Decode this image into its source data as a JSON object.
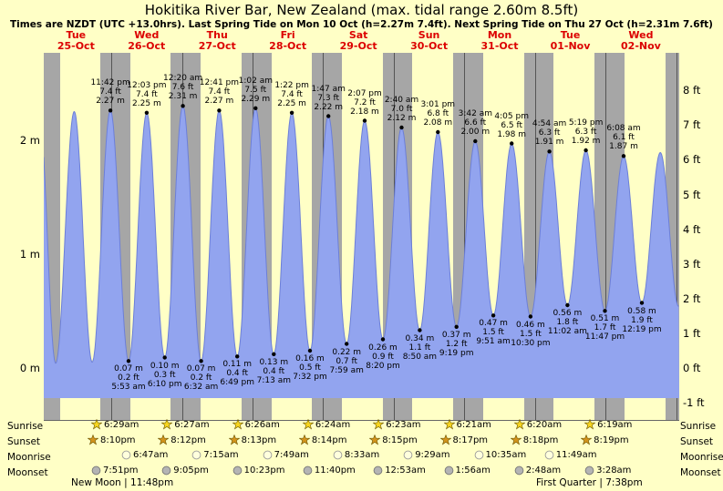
{
  "header": {
    "title": "Hokitika River Bar, New Zealand (max. tidal range 2.60m 8.5ft)",
    "subtitle": "Times are NZDT (UTC +13.0hrs). Last Spring Tide on Mon 10 Oct (h=2.27m 7.4ft). Next Spring Tide on Thu 27 Oct (h=2.31m 7.6ft)"
  },
  "days": [
    {
      "name": "Tue",
      "date": "25-Oct"
    },
    {
      "name": "Wed",
      "date": "26-Oct"
    },
    {
      "name": "Thu",
      "date": "27-Oct"
    },
    {
      "name": "Fri",
      "date": "28-Oct"
    },
    {
      "name": "Sat",
      "date": "29-Oct"
    },
    {
      "name": "Sun",
      "date": "30-Oct"
    },
    {
      "name": "Mon",
      "date": "31-Oct"
    },
    {
      "name": "Tue",
      "date": "01-Nov"
    },
    {
      "name": "Wed",
      "date": "02-Nov"
    }
  ],
  "axes": {
    "left_ticks": [
      {
        "label": "2 m",
        "value": 2
      },
      {
        "label": "1 m",
        "value": 1
      },
      {
        "label": "0 m",
        "value": 0
      }
    ],
    "right_ticks": [
      {
        "label": "8 ft",
        "value": 8
      },
      {
        "label": "7 ft",
        "value": 7
      },
      {
        "label": "6 ft",
        "value": 6
      },
      {
        "label": "5 ft",
        "value": 5
      },
      {
        "label": "4 ft",
        "value": 4
      },
      {
        "label": "3 ft",
        "value": 3
      },
      {
        "label": "2 ft",
        "value": 2
      },
      {
        "label": "1 ft",
        "value": 1
      },
      {
        "label": "0 ft",
        "value": 0
      },
      {
        "label": "-1 ft",
        "value": -1
      }
    ]
  },
  "chart_data": {
    "type": "area",
    "title": "Hokitika River Bar tide curve, Tue 25-Oct to Wed 02-Nov",
    "ylabel_left": "meters",
    "ylabel_right": "feet",
    "ylim_m": [
      -0.26,
      2.78
    ],
    "x_unit": "hours from Tue 25-Oct 00:00 NZDT",
    "day_shading": "gray = night (sunset to sunrise), yellow = daylight",
    "extremes": [
      {
        "t": -0.5,
        "h": 2.25,
        "kind": "H",
        "labeled": false
      },
      {
        "t": 5.1,
        "h": 0.05,
        "kind": "L",
        "labeled": false
      },
      {
        "t": 11.4,
        "h": 2.26,
        "kind": "H",
        "labeled": false
      },
      {
        "t": 17.5,
        "h": 0.06,
        "kind": "L",
        "labeled": false
      },
      {
        "t": 23.7,
        "h": 2.27,
        "kind": "H",
        "labeled": true,
        "time": "11:42 pm",
        "ft": "7.4",
        "m": "2.27"
      },
      {
        "t": 29.883,
        "h": 0.07,
        "kind": "L",
        "labeled": true,
        "time": "5:53 am",
        "ft": "0.2",
        "m": "0.07"
      },
      {
        "t": 36.05,
        "h": 2.25,
        "kind": "H",
        "labeled": true,
        "time": "12:03 pm",
        "ft": "7.4",
        "m": "2.25"
      },
      {
        "t": 42.167,
        "h": 0.1,
        "kind": "L",
        "labeled": true,
        "time": "6:10 pm",
        "ft": "0.3",
        "m": "0.10"
      },
      {
        "t": 48.333,
        "h": 2.31,
        "kind": "H",
        "labeled": true,
        "time": "12:20 am",
        "ft": "7.6",
        "m": "2.31"
      },
      {
        "t": 54.533,
        "h": 0.07,
        "kind": "L",
        "labeled": true,
        "time": "6:32 am",
        "ft": "0.2",
        "m": "0.07"
      },
      {
        "t": 60.683,
        "h": 2.27,
        "kind": "H",
        "labeled": true,
        "time": "12:41 pm",
        "ft": "7.4",
        "m": "2.27"
      },
      {
        "t": 66.817,
        "h": 0.11,
        "kind": "L",
        "labeled": true,
        "time": "6:49 pm",
        "ft": "0.4",
        "m": "0.11"
      },
      {
        "t": 73.033,
        "h": 2.29,
        "kind": "H",
        "labeled": true,
        "time": "1:02 am",
        "ft": "7.5",
        "m": "2.29"
      },
      {
        "t": 79.217,
        "h": 0.13,
        "kind": "L",
        "labeled": true,
        "time": "7:13 am",
        "ft": "0.4",
        "m": "0.13"
      },
      {
        "t": 85.367,
        "h": 2.25,
        "kind": "H",
        "labeled": true,
        "time": "1:22 pm",
        "ft": "7.4",
        "m": "2.25"
      },
      {
        "t": 91.533,
        "h": 0.16,
        "kind": "L",
        "labeled": true,
        "time": "7:32 pm",
        "ft": "0.5",
        "m": "0.16"
      },
      {
        "t": 97.783,
        "h": 2.22,
        "kind": "H",
        "labeled": true,
        "time": "1:47 am",
        "ft": "7.3",
        "m": "2.22"
      },
      {
        "t": 103.983,
        "h": 0.22,
        "kind": "L",
        "labeled": true,
        "time": "7:59 am",
        "ft": "0.7",
        "m": "0.22"
      },
      {
        "t": 110.117,
        "h": 2.18,
        "kind": "H",
        "labeled": true,
        "time": "2:07 pm",
        "ft": "7.2",
        "m": "2.18"
      },
      {
        "t": 116.333,
        "h": 0.26,
        "kind": "L",
        "labeled": true,
        "time": "8:20 pm",
        "ft": "0.9",
        "m": "0.26"
      },
      {
        "t": 122.667,
        "h": 2.12,
        "kind": "H",
        "labeled": true,
        "time": "2:40 am",
        "ft": "7.0",
        "m": "2.12"
      },
      {
        "t": 128.833,
        "h": 0.34,
        "kind": "L",
        "labeled": true,
        "time": "8:50 am",
        "ft": "1.1",
        "m": "0.34"
      },
      {
        "t": 135.017,
        "h": 2.08,
        "kind": "H",
        "labeled": true,
        "time": "3:01 pm",
        "ft": "6.8",
        "m": "2.08"
      },
      {
        "t": 141.317,
        "h": 0.37,
        "kind": "L",
        "labeled": true,
        "time": "9:19 pm",
        "ft": "1.2",
        "m": "0.37"
      },
      {
        "t": 147.7,
        "h": 2.0,
        "kind": "H",
        "labeled": true,
        "time": "3:42 am",
        "ft": "6.6",
        "m": "2.00"
      },
      {
        "t": 153.85,
        "h": 0.47,
        "kind": "L",
        "labeled": true,
        "time": "9:51 am",
        "ft": "1.5",
        "m": "0.47"
      },
      {
        "t": 160.083,
        "h": 1.98,
        "kind": "H",
        "labeled": true,
        "time": "4:05 pm",
        "ft": "6.5",
        "m": "1.98"
      },
      {
        "t": 166.5,
        "h": 0.46,
        "kind": "L",
        "labeled": true,
        "time": "10:30 pm",
        "ft": "1.5",
        "m": "0.46"
      },
      {
        "t": 172.9,
        "h": 1.91,
        "kind": "H",
        "labeled": true,
        "time": "4:54 am",
        "ft": "6.3",
        "m": "1.91"
      },
      {
        "t": 179.033,
        "h": 0.56,
        "kind": "L",
        "labeled": true,
        "time": "11:02 am",
        "ft": "1.8",
        "m": "0.56"
      },
      {
        "t": 185.317,
        "h": 1.92,
        "kind": "H",
        "labeled": true,
        "time": "5:19 pm",
        "ft": "6.3",
        "m": "1.92"
      },
      {
        "t": 191.783,
        "h": 0.51,
        "kind": "L",
        "labeled": true,
        "time": "11:47 pm",
        "ft": "1.7",
        "m": "0.51"
      },
      {
        "t": 198.133,
        "h": 1.87,
        "kind": "H",
        "labeled": true,
        "time": "6:08 am",
        "ft": "6.1",
        "m": "1.87"
      },
      {
        "t": 204.317,
        "h": 0.58,
        "kind": "L",
        "labeled": true,
        "time": "12:19 pm",
        "ft": "1.9",
        "m": "0.58"
      },
      {
        "t": 210.6,
        "h": 1.9,
        "kind": "H",
        "labeled": false
      },
      {
        "t": 216.8,
        "h": 0.55,
        "kind": "L",
        "labeled": false
      }
    ]
  },
  "almanac": {
    "rows": [
      {
        "label": "Sunrise",
        "icon": "sunrise-star-icon",
        "times": [
          "6:29am",
          "6:27am",
          "6:26am",
          "6:24am",
          "6:23am",
          "6:21am",
          "6:20am",
          "6:19am"
        ]
      },
      {
        "label": "Sunset",
        "icon": "sunset-star-icon",
        "times": [
          "8:10pm",
          "8:12pm",
          "8:13pm",
          "8:14pm",
          "8:15pm",
          "8:17pm",
          "8:18pm",
          "8:19pm"
        ]
      },
      {
        "label": "Moonrise",
        "icon": "moonrise-circle-icon",
        "times": [
          "6:47am",
          "7:15am",
          "7:49am",
          "8:33am",
          "9:29am",
          "10:35am",
          "11:49am"
        ]
      },
      {
        "label": "Moonset",
        "icon": "moonset-circle-icon",
        "times": [
          "7:51pm",
          "9:05pm",
          "10:23pm",
          "11:40pm",
          "12:53am",
          "1:56am",
          "2:48am",
          "3:28am"
        ]
      }
    ],
    "phases": [
      {
        "name": "New Moon",
        "time": "11:48pm"
      },
      {
        "name": "First Quarter",
        "time": "7:38pm"
      }
    ]
  },
  "colors": {
    "background": "#ffffc6",
    "night_band": "#a6a6a6",
    "tide_fill": "#92a4ef",
    "tide_stroke": "#6c7fd8",
    "date_red": "#dc0000",
    "sunrise_star": "#f6d41e",
    "sunset_star": "#d2931c",
    "moonrise_circle": "#ffffdd",
    "moonset_circle": "#b4b4b4"
  }
}
